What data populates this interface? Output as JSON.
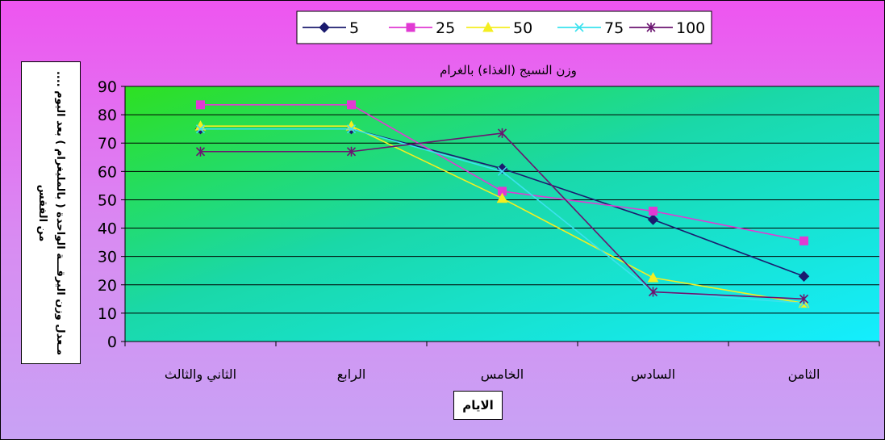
{
  "chart_data": {
    "type": "line",
    "title": "وزن النسيج (الغذاء) بالغرام",
    "xlabel": "الايام",
    "ylabel": "مـعدل وزن اليرقـــة الواحدة ( بالمليغرام ) بعد اليوم .... من الفقس",
    "categories": [
      "الثاني والثالث",
      "الرابع",
      "الخامس",
      "السادس",
      "الثامن"
    ],
    "ylim": [
      0,
      90
    ],
    "yticks": [
      0,
      10,
      20,
      30,
      40,
      50,
      60,
      70,
      80,
      90
    ],
    "grid": true,
    "legend_position": "top",
    "series": [
      {
        "name": "5",
        "values": [
          75,
          75,
          61,
          43,
          23
        ],
        "color": "#1b1b6e",
        "marker": "diamond"
      },
      {
        "name": "25",
        "values": [
          83.5,
          83.5,
          53,
          46,
          35.5
        ],
        "color": "#e13ad3",
        "marker": "square"
      },
      {
        "name": "50",
        "values": [
          76,
          76,
          50.5,
          22.5,
          13.5
        ],
        "color": "#f4ee21",
        "marker": "triangle"
      },
      {
        "name": "75",
        "values": [
          75,
          75,
          60,
          17.5,
          13.5
        ],
        "color": "#3ae2ee",
        "marker": "x"
      },
      {
        "name": "100",
        "values": [
          67,
          67,
          73.5,
          17.5,
          15
        ],
        "color": "#6b1570",
        "marker": "star"
      }
    ]
  }
}
